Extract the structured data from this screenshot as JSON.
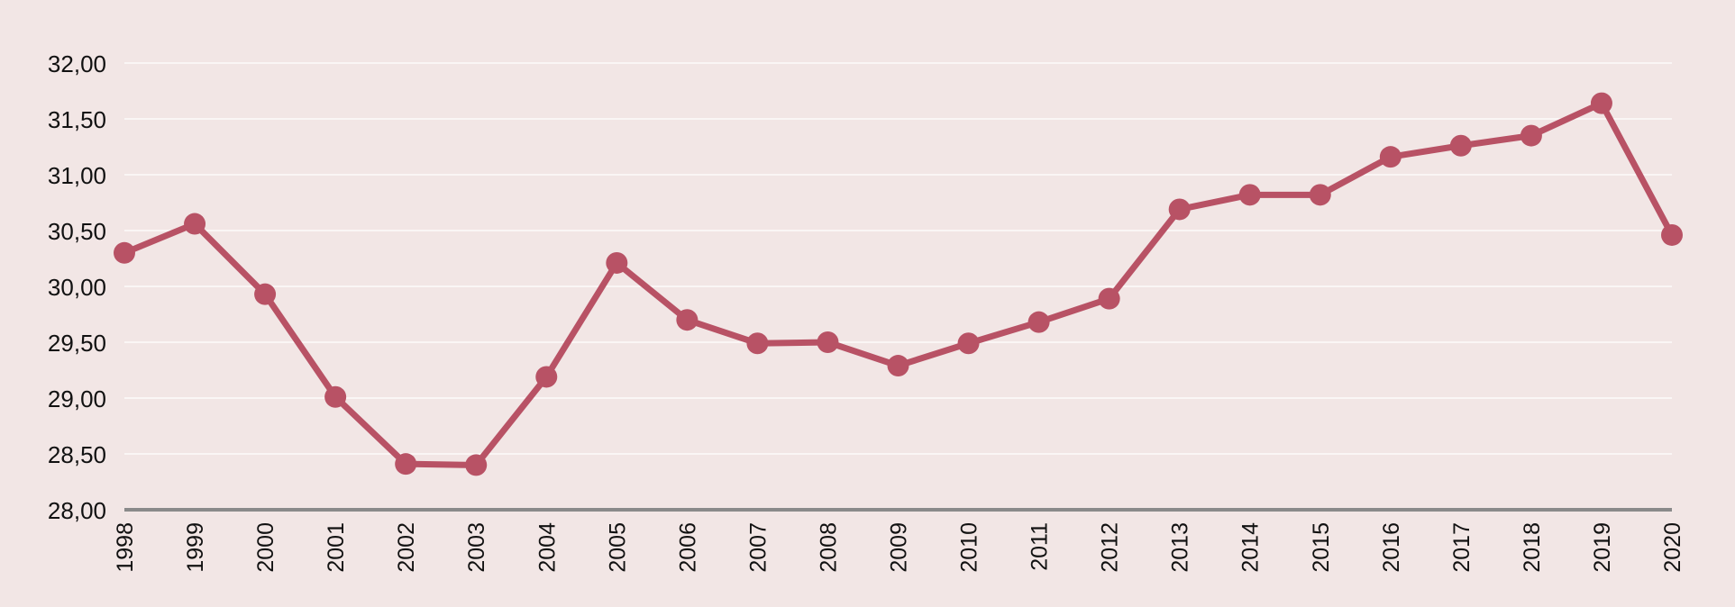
{
  "colors": {
    "background": "#f2e6e5",
    "line": "#b85265",
    "gridline": "#ffffff",
    "axis": "#8a8a8a",
    "text": "#111111"
  },
  "chart_data": {
    "type": "line",
    "title": "",
    "xlabel": "",
    "ylabel": "",
    "ylim": [
      28,
      32
    ],
    "grid": true,
    "legend": "none",
    "y_ticks": [
      "28,00",
      "28,50",
      "29,00",
      "29,50",
      "30,00",
      "30,50",
      "31,00",
      "31,50",
      "32,00"
    ],
    "categories": [
      "1998",
      "1999",
      "2000",
      "2001",
      "2002",
      "2003",
      "2004",
      "2005",
      "2006",
      "2007",
      "2008",
      "2009",
      "2010",
      "2011",
      "2012",
      "2013",
      "2014",
      "2015",
      "2016",
      "2017",
      "2018",
      "2019",
      "2020"
    ],
    "series": [
      {
        "values": [
          30.3,
          30.56,
          29.93,
          29.01,
          28.41,
          28.4,
          29.19,
          30.21,
          29.7,
          29.49,
          29.5,
          29.29,
          29.49,
          29.68,
          29.89,
          30.69,
          30.82,
          30.82,
          31.16,
          31.26,
          31.35,
          31.64,
          30.46
        ]
      }
    ]
  }
}
